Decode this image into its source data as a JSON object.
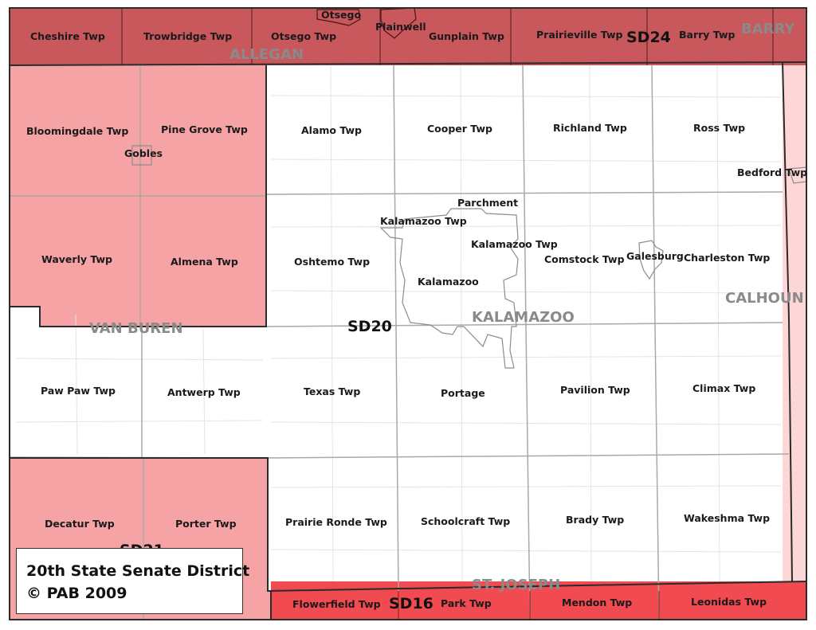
{
  "colors": {
    "sd24": "#c9585d",
    "sd21": "#f6a3a6",
    "sd16": "#f14a50",
    "sd19": "#fdd6d7",
    "sd20": "#ffffff",
    "county_label": "#8a8a8a",
    "district_border": "#2b2b2b",
    "grid_line": "#a9a9a9"
  },
  "counties": {
    "allegan": "ALLEGAN",
    "barry": "BARRY",
    "van_buren": "VAN BUREN",
    "kalamazoo": "KALAMAZOO",
    "calhoun": "CALHOUN",
    "st_joseph": "ST. JOSEPH"
  },
  "districts": {
    "sd24": "SD24",
    "sd20": "SD20",
    "sd21": "SD21",
    "sd16": "SD16"
  },
  "townships": {
    "cheshire": "Cheshire Twp",
    "trowbridge": "Trowbridge Twp",
    "otsego_twp": "Otsego Twp",
    "gunplain": "Gunplain Twp",
    "prairieville": "Prairieville Twp",
    "barry_twp": "Barry Twp",
    "bloomingdale": "Bloomingdale Twp",
    "pine_grove": "Pine Grove Twp",
    "waverly": "Waverly Twp",
    "almena": "Almena Twp",
    "paw_paw": "Paw Paw Twp",
    "antwerp": "Antwerp Twp",
    "decatur": "Decatur Twp",
    "porter": "Porter Twp",
    "alamo": "Alamo Twp",
    "cooper": "Cooper Twp",
    "richland": "Richland Twp",
    "ross": "Ross Twp",
    "bedford": "Bedford Twp",
    "kalamazoo_twp_1": "Kalamazoo Twp",
    "kalamazoo_twp_2": "Kalamazoo Twp",
    "oshtemo": "Oshtemo Twp",
    "comstock": "Comstock Twp",
    "charleston": "Charleston Twp",
    "texas": "Texas Twp",
    "pavilion": "Pavilion Twp",
    "climax": "Climax Twp",
    "prairie_ronde": "Prairie Ronde Twp",
    "schoolcraft": "Schoolcraft Twp",
    "brady": "Brady Twp",
    "wakeshma": "Wakeshma Twp",
    "flowerfield": "Flowerfield Twp",
    "park": "Park Twp",
    "mendon": "Mendon Twp",
    "leonidas": "Leonidas Twp"
  },
  "places": {
    "otsego": "Otsego",
    "plainwell": "Plainwell",
    "gobles": "Gobles",
    "parchment": "Parchment",
    "kalamazoo": "Kalamazoo",
    "galesburg": "Galesburg",
    "portage": "Portage"
  },
  "legend": {
    "title": "20th State Senate District",
    "credit": "© PAB 2009"
  }
}
